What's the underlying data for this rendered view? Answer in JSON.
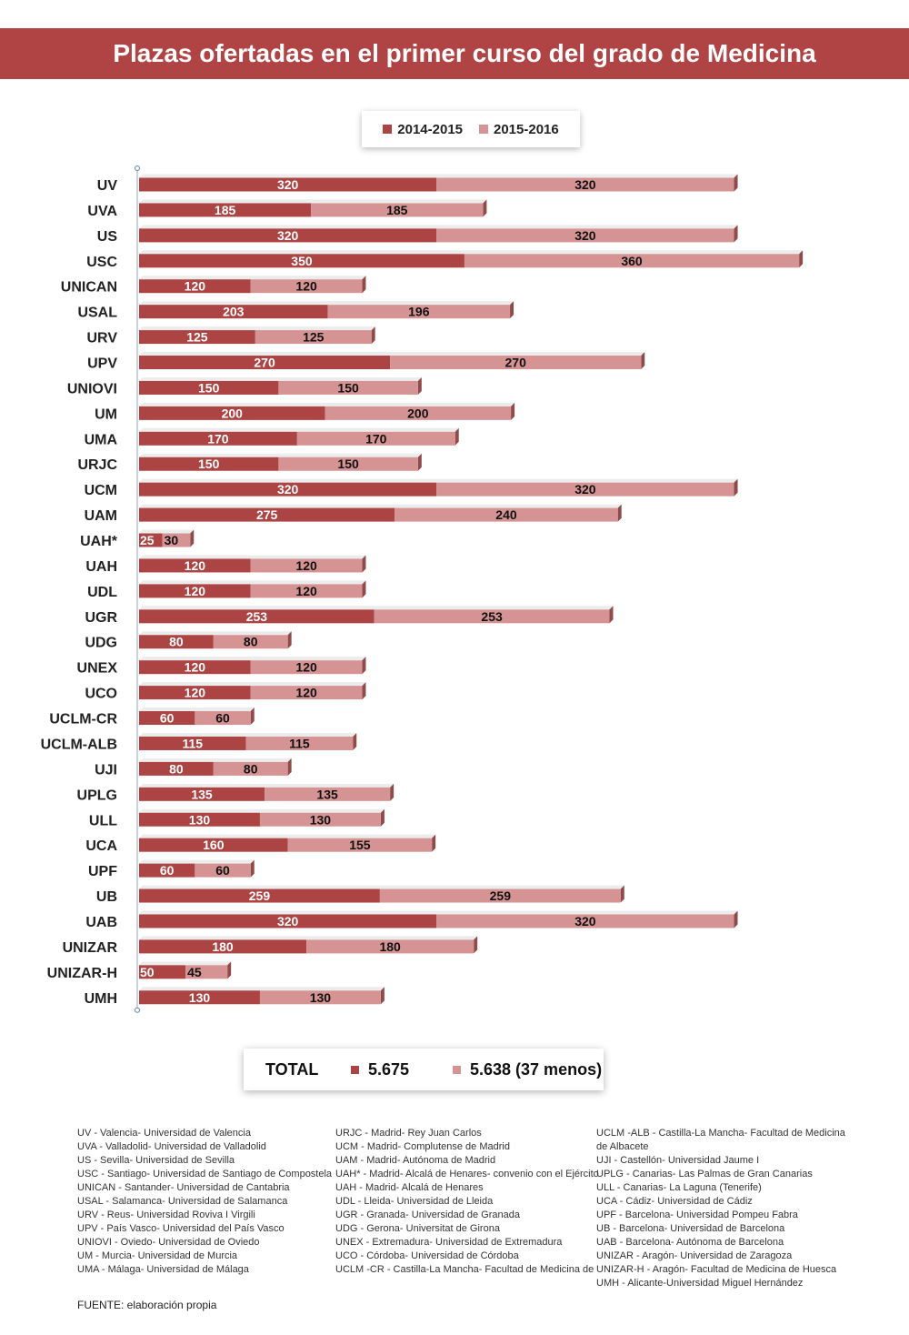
{
  "title": "Plazas ofertadas en el primer curso del grado de Medicina",
  "colors": {
    "banner": "#b04444",
    "s2014": "#ad4444",
    "s2015": "#d69393",
    "label2014": "#ffffff",
    "label2015": "#111111"
  },
  "chart_data": {
    "type": "bar",
    "orientation": "horizontal",
    "stacked": true,
    "style": "3d",
    "legend_position": "top",
    "grid": false,
    "categories": [
      "UV",
      "UVA",
      "US",
      "USC",
      "UNICAN",
      "USAL",
      "URV",
      "UPV",
      "UNIOVI",
      "UM",
      "UMA",
      "URJC",
      "UCM",
      "UAM",
      "UAH*",
      "UAH",
      "UDL",
      "UGR",
      "UDG",
      "UNEX",
      "UCO",
      "UCLM-CR",
      "UCLM-ALB",
      "UJI",
      "UPLG",
      "ULL",
      "UCA",
      "UPF",
      "UB",
      "UAB",
      "UNIZAR",
      "UNIZAR-H",
      "UMH"
    ],
    "series": [
      {
        "name": "2014-2015",
        "values": [
          320,
          185,
          320,
          350,
          120,
          203,
          125,
          270,
          150,
          200,
          170,
          150,
          320,
          275,
          25,
          120,
          120,
          253,
          80,
          120,
          120,
          60,
          115,
          80,
          135,
          130,
          160,
          60,
          259,
          320,
          180,
          50,
          130
        ]
      },
      {
        "name": "2015-2016",
        "values": [
          320,
          185,
          320,
          360,
          120,
          196,
          125,
          270,
          150,
          200,
          170,
          150,
          320,
          240,
          30,
          120,
          120,
          253,
          80,
          120,
          120,
          60,
          115,
          80,
          135,
          130,
          155,
          60,
          259,
          320,
          180,
          45,
          130
        ]
      }
    ]
  },
  "legend": {
    "s1": "2014-2015",
    "s2": "2015-2016"
  },
  "total": {
    "label": "TOTAL",
    "value1": "5.675",
    "value2": "5.638 (37 menos)"
  },
  "glossary": {
    "col1": [
      "UV - Valencia- Universidad de Valencia",
      "UVA - Valladolid- Universidad de Valladolid",
      "US - Sevilla- Universidad de Sevilla",
      "USC - Santiago- Universidad de Santiago de Compostela",
      "UNICAN - Santander- Universidad de Cantabria",
      "USAL - Salamanca- Universidad de Salamanca",
      "URV - Reus- Universidad Roviva I Virgili",
      "UPV - País Vasco- Universidad del País Vasco",
      "UNIOVI - Oviedo- Universidad de Oviedo",
      "UM - Murcia- Universidad de Murcia",
      "UMA - Málaga- Universidad de Málaga"
    ],
    "col2": [
      "URJC - Madrid- Rey Juan Carlos",
      "UCM - Madrid- Complutense de Madrid",
      "UAM - Madrid- Autónoma de Madrid",
      "UAH* - Madrid- Alcalá de Henares- convenio con el Ejército",
      "UAH - Madrid- Alcalá de Henares",
      "UDL - Lleida- Universidad de Lleida",
      "UGR - Granada- Universidad de Granada",
      "UDG - Gerona- Universitat de Girona",
      "UNEX - Extremadura- Universidad de Extremadura",
      "UCO - Córdoba- Universidad de Córdoba",
      "UCLM -CR - Castilla-La Mancha- Facultad de Medicina de"
    ],
    "col3": [
      "UCLM -ALB - Castilla-La Mancha- Facultad de Medicina de Albacete",
      "UJI - Castellón- Universidad Jaume I",
      "UPLG - Canarias- Las Palmas de Gran Canarias",
      "ULL - Canarias- La Laguna (Tenerife)",
      "UCA - Cádiz- Universidad de Cádiz",
      "UPF - Barcelona- Universidad Pompeu Fabra",
      "UB - Barcelona- Universidad de Barcelona",
      "UAB - Barcelona- Autónoma de Barcelona",
      "UNIZAR - Aragón- Universidad de Zaragoza",
      "UNIZAR-H - Aragón- Facultad de Medicina de Huesca",
      "UMH - Alicante-Universidad Miguel Hernández"
    ]
  },
  "source": "FUENTE: elaboración propia"
}
